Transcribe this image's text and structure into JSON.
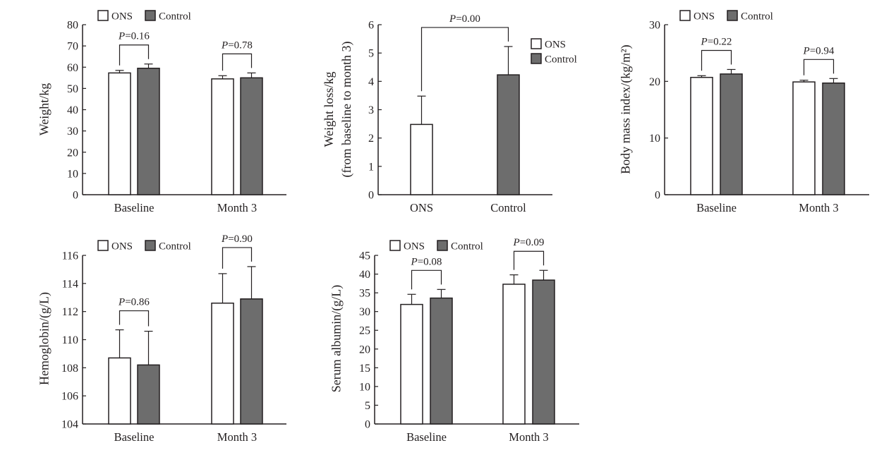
{
  "colors": {
    "ons": "#ffffff",
    "control": "#6d6d6d",
    "stroke": "#231f20"
  },
  "legend": [
    "ONS",
    "Control"
  ],
  "chart_data": [
    {
      "id": "weight",
      "type": "bar",
      "ylabel": [
        "Weight/kg"
      ],
      "ylim": [
        0,
        80
      ],
      "yticks": [
        0,
        10,
        20,
        30,
        40,
        50,
        60,
        70,
        80
      ],
      "categories": [
        "Baseline",
        "Month 3"
      ],
      "series": [
        {
          "name": "ONS",
          "values": [
            57.3,
            54.5
          ],
          "errors": [
            1.2,
            1.5
          ]
        },
        {
          "name": "Control",
          "values": [
            59.5,
            55.0
          ],
          "errors": [
            2.0,
            2.3
          ]
        }
      ],
      "p_values": [
        "0.16",
        "0.78"
      ],
      "legend_position": "top-left"
    },
    {
      "id": "weight-loss",
      "type": "bar",
      "ylabel": [
        "Weight loss/kg",
        "(from baseline to month 3)"
      ],
      "ylim": [
        0,
        6
      ],
      "yticks": [
        0,
        1,
        2,
        3,
        4,
        5,
        6
      ],
      "categories": [
        "ONS",
        "Control"
      ],
      "series": [
        {
          "name": "ONS",
          "values": [
            2.48,
            null
          ],
          "errors": [
            1.0,
            null
          ]
        },
        {
          "name": "Control",
          "values": [
            null,
            4.23
          ],
          "errors": [
            null,
            1.0
          ]
        }
      ],
      "p_values": [
        "0.00"
      ],
      "legend_position": "right"
    },
    {
      "id": "bmi",
      "type": "bar",
      "ylabel": [
        "Body mass index/(kg/m²)"
      ],
      "ylim": [
        0,
        30
      ],
      "yticks": [
        0,
        10,
        20,
        30
      ],
      "categories": [
        "Baseline",
        "Month 3"
      ],
      "series": [
        {
          "name": "ONS",
          "values": [
            20.7,
            19.9
          ],
          "errors": [
            0.3,
            0.3
          ]
        },
        {
          "name": "Control",
          "values": [
            21.3,
            19.7
          ],
          "errors": [
            0.8,
            0.8
          ]
        }
      ],
      "p_values": [
        "0.22",
        "0.94"
      ],
      "legend_position": "top-left"
    },
    {
      "id": "hemoglobin",
      "type": "bar",
      "ylabel": [
        "Hemoglobin/(g/L)"
      ],
      "ylim": [
        104,
        116
      ],
      "yticks": [
        104,
        106,
        108,
        110,
        112,
        114,
        116
      ],
      "categories": [
        "Baseline",
        "Month 3"
      ],
      "series": [
        {
          "name": "ONS",
          "values": [
            108.7,
            112.6
          ],
          "errors": [
            2.0,
            2.1
          ]
        },
        {
          "name": "Control",
          "values": [
            108.2,
            112.9
          ],
          "errors": [
            2.4,
            2.3
          ]
        }
      ],
      "p_values": [
        "0.86",
        "0.90"
      ],
      "legend_position": "top-left"
    },
    {
      "id": "serum-albumin",
      "type": "bar",
      "ylabel": [
        "Serum albumin/(g/L)"
      ],
      "ylim": [
        0,
        45
      ],
      "yticks": [
        0,
        5,
        10,
        15,
        20,
        25,
        30,
        35,
        40,
        45
      ],
      "categories": [
        "Baseline",
        "Month 3"
      ],
      "series": [
        {
          "name": "ONS",
          "values": [
            31.9,
            37.3
          ],
          "errors": [
            2.7,
            2.5
          ]
        },
        {
          "name": "Control",
          "values": [
            33.6,
            38.4
          ],
          "errors": [
            2.3,
            2.6
          ]
        }
      ],
      "p_values": [
        "0.08",
        "0.09"
      ],
      "legend_position": "top-left"
    }
  ]
}
